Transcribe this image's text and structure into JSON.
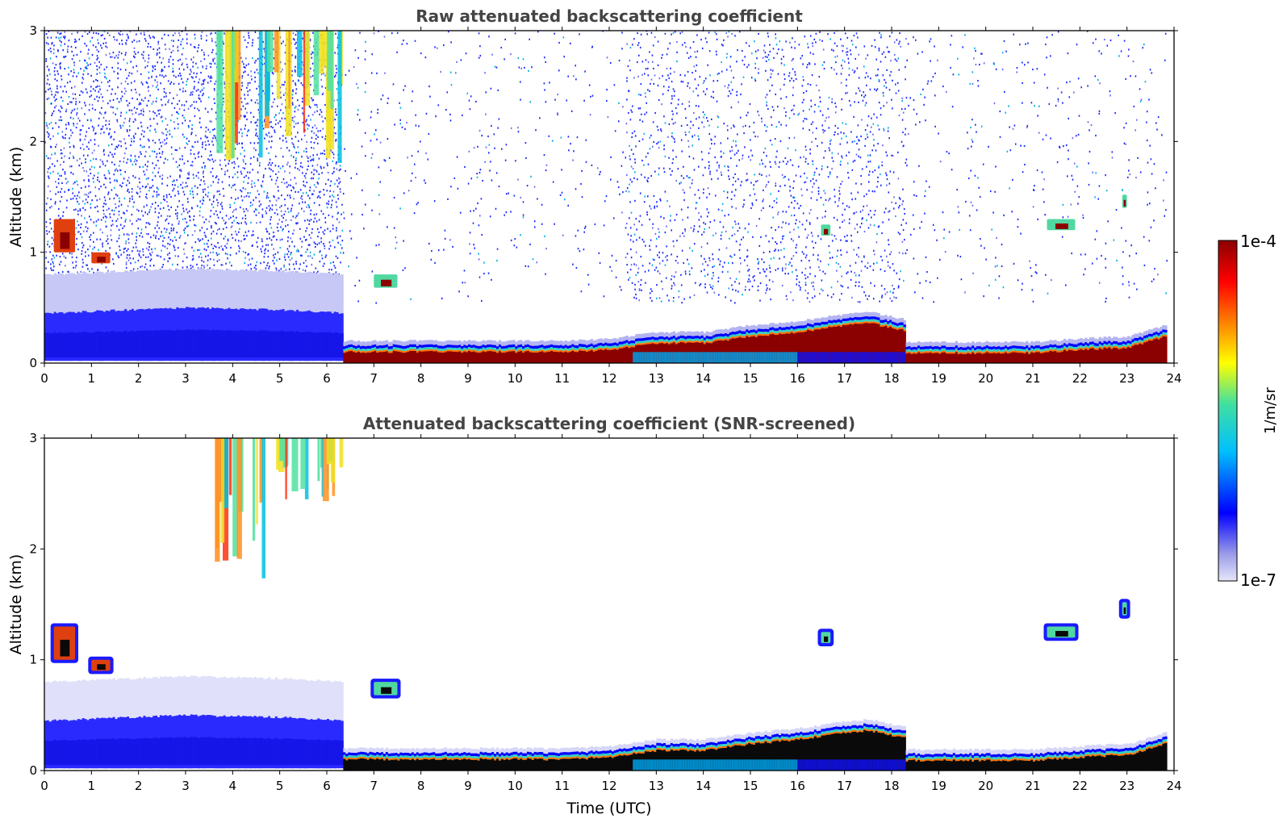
{
  "chart_data": [
    {
      "type": "heatmap",
      "title": "Raw attenuated backscattering coefficient",
      "xlabel": "",
      "ylabel": "Altitude (km)",
      "xlim": [
        0,
        24
      ],
      "ylim": [
        0,
        3
      ],
      "xticks": [
        "0",
        "1",
        "2",
        "3",
        "4",
        "5",
        "6",
        "7",
        "8",
        "9",
        "10",
        "11",
        "12",
        "13",
        "14",
        "15",
        "16",
        "17",
        "18",
        "19",
        "20",
        "21",
        "22",
        "23",
        "24"
      ],
      "yticks": [
        "0",
        "1",
        "2",
        "3"
      ],
      "screened": false,
      "boundary_layer_top_km": [
        {
          "t": 0.0,
          "z": 0.45
        },
        {
          "t": 3.0,
          "z": 0.5
        },
        {
          "t": 5.0,
          "z": 0.48
        },
        {
          "t": 6.3,
          "z": 0.45
        },
        {
          "t": 6.3,
          "z": 0.16
        },
        {
          "t": 11.0,
          "z": 0.16
        },
        {
          "t": 12.0,
          "z": 0.18
        },
        {
          "t": 13.0,
          "z": 0.24
        },
        {
          "t": 14.0,
          "z": 0.24
        },
        {
          "t": 15.0,
          "z": 0.3
        },
        {
          "t": 16.0,
          "z": 0.34
        },
        {
          "t": 17.0,
          "z": 0.4
        },
        {
          "t": 17.5,
          "z": 0.42
        },
        {
          "t": 18.3,
          "z": 0.35
        },
        {
          "t": 18.3,
          "z": 0.15
        },
        {
          "t": 21.0,
          "z": 0.15
        },
        {
          "t": 22.0,
          "z": 0.18
        },
        {
          "t": 23.0,
          "z": 0.2
        },
        {
          "t": 23.8,
          "z": 0.3
        }
      ]
    },
    {
      "type": "heatmap",
      "title": "Attenuated backscattering coefficient (SNR-screened)",
      "xlabel": "Time (UTC)",
      "ylabel": "Altitude (km)",
      "xlim": [
        0,
        24
      ],
      "ylim": [
        0,
        3
      ],
      "xticks": [
        "0",
        "1",
        "2",
        "3",
        "4",
        "5",
        "6",
        "7",
        "8",
        "9",
        "10",
        "11",
        "12",
        "13",
        "14",
        "15",
        "16",
        "17",
        "18",
        "19",
        "20",
        "21",
        "22",
        "23",
        "24"
      ],
      "yticks": [
        "0",
        "1",
        "2",
        "3"
      ],
      "screened": true,
      "boundary_layer_top_km": [
        {
          "t": 0.0,
          "z": 0.45
        },
        {
          "t": 3.0,
          "z": 0.5
        },
        {
          "t": 5.0,
          "z": 0.48
        },
        {
          "t": 6.3,
          "z": 0.45
        },
        {
          "t": 6.3,
          "z": 0.16
        },
        {
          "t": 11.0,
          "z": 0.16
        },
        {
          "t": 12.0,
          "z": 0.18
        },
        {
          "t": 13.0,
          "z": 0.24
        },
        {
          "t": 14.0,
          "z": 0.24
        },
        {
          "t": 15.0,
          "z": 0.3
        },
        {
          "t": 16.0,
          "z": 0.34
        },
        {
          "t": 17.0,
          "z": 0.4
        },
        {
          "t": 17.5,
          "z": 0.42
        },
        {
          "t": 18.3,
          "z": 0.35
        },
        {
          "t": 18.3,
          "z": 0.15
        },
        {
          "t": 21.0,
          "z": 0.15
        },
        {
          "t": 22.0,
          "z": 0.18
        },
        {
          "t": 23.0,
          "z": 0.2
        },
        {
          "t": 23.8,
          "z": 0.3
        }
      ]
    }
  ],
  "colorbar": {
    "max_label": "1e-4",
    "min_label": "1e-7",
    "unit": "1/m/sr",
    "colors": [
      "#e6e6fa",
      "#9a9ae8",
      "#0000ff",
      "#00bfff",
      "#40e0a0",
      "#ffff00",
      "#ff8000",
      "#ff0000",
      "#8b0000"
    ]
  },
  "features": [
    {
      "name": "virga-fallstreaks",
      "t0": 3.6,
      "t1": 6.3,
      "z0": 1.7,
      "z1": 3.0
    },
    {
      "name": "cloud-1",
      "t0": 0.2,
      "t1": 0.65,
      "z0": 1.0,
      "z1": 1.3
    },
    {
      "name": "cloud-2",
      "t0": 1.0,
      "t1": 1.4,
      "z0": 0.9,
      "z1": 1.0
    },
    {
      "name": "cloud-3",
      "t0": 7.0,
      "t1": 7.5,
      "z0": 0.68,
      "z1": 0.8
    },
    {
      "name": "cloud-4",
      "t0": 16.5,
      "t1": 16.7,
      "z0": 1.15,
      "z1": 1.25
    },
    {
      "name": "cloud-5",
      "t0": 21.3,
      "t1": 21.9,
      "z0": 1.2,
      "z1": 1.3
    },
    {
      "name": "cloud-6",
      "t0": 22.9,
      "t1": 23.0,
      "z0": 1.4,
      "z1": 1.52
    }
  ]
}
